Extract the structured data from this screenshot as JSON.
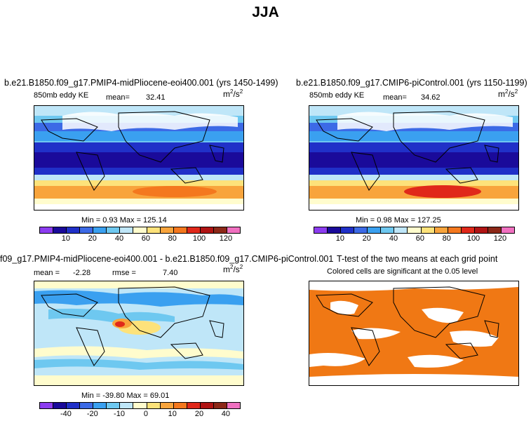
{
  "title": "JJA",
  "panels": {
    "top_left": {
      "case": "b.e21.B1850.f09_g17.PMIP4-midPliocene-eoi400.001 (yrs 1450-1499)",
      "variable": "850mb eddy KE",
      "mean_label": "mean=",
      "mean_value": "32.41",
      "units": "m",
      "units_exp": "2",
      "units_den": "/s",
      "units_den_exp": "2",
      "minmax": "Min =    0.93  Max =  125.14",
      "colorbar_ticks": [
        "10",
        "20",
        "40",
        "60",
        "80",
        "100",
        "120"
      ]
    },
    "top_right": {
      "case": "b.e21.B1850.f09_g17.CMIP6-piControl.001 (yrs 1150-1199)",
      "variable": "850mb eddy KE",
      "mean_label": "mean=",
      "mean_value": "34.62",
      "units": "m",
      "units_exp": "2",
      "units_den": "/s",
      "units_den_exp": "2",
      "minmax": "Min =    0.98  Max =  127.25",
      "colorbar_ticks": [
        "10",
        "20",
        "40",
        "60",
        "80",
        "100",
        "120"
      ]
    },
    "bottom_left": {
      "case": "f09_g17.PMIP4-midPliocene-eoi400.001 - b.e21.B1850.f09_g17.CMIP6-piControl.001",
      "mean_label": "mean =",
      "mean_value": "-2.28",
      "rmse_label": "rmse =",
      "rmse_value": "7.40",
      "units": "m",
      "units_exp": "2",
      "units_den": "/s",
      "units_den_exp": "2",
      "minmax": "Min = -39.80  Max =  69.01",
      "colorbar_ticks": [
        "-40",
        "-20",
        "-10",
        "0",
        "10",
        "20",
        "40"
      ]
    },
    "bottom_right": {
      "case": "T-test of the two means at each grid point",
      "subtitle": "Colored cells are significant at the 0.05 level"
    }
  },
  "colors": {
    "ke_scale": [
      "#8c3cf0",
      "#1a0a9a",
      "#2030c8",
      "#3c6ae6",
      "#3aa0f0",
      "#6ec8f0",
      "#bfe6f8",
      "#fffccd",
      "#fde27a",
      "#f8a43c",
      "#f4781e",
      "#e0281a",
      "#b01414",
      "#8c2818",
      "#f070c0"
    ],
    "diff_scale": [
      "#8c3cf0",
      "#1a0a9a",
      "#2030c8",
      "#3c6ae6",
      "#3aa0f0",
      "#6ec8f0",
      "#bfe6f8",
      "#fffccd",
      "#fde27a",
      "#f8a43c",
      "#f4781e",
      "#e0281a",
      "#b01414",
      "#8c2818",
      "#f070c0"
    ],
    "significance": "#f07814"
  }
}
